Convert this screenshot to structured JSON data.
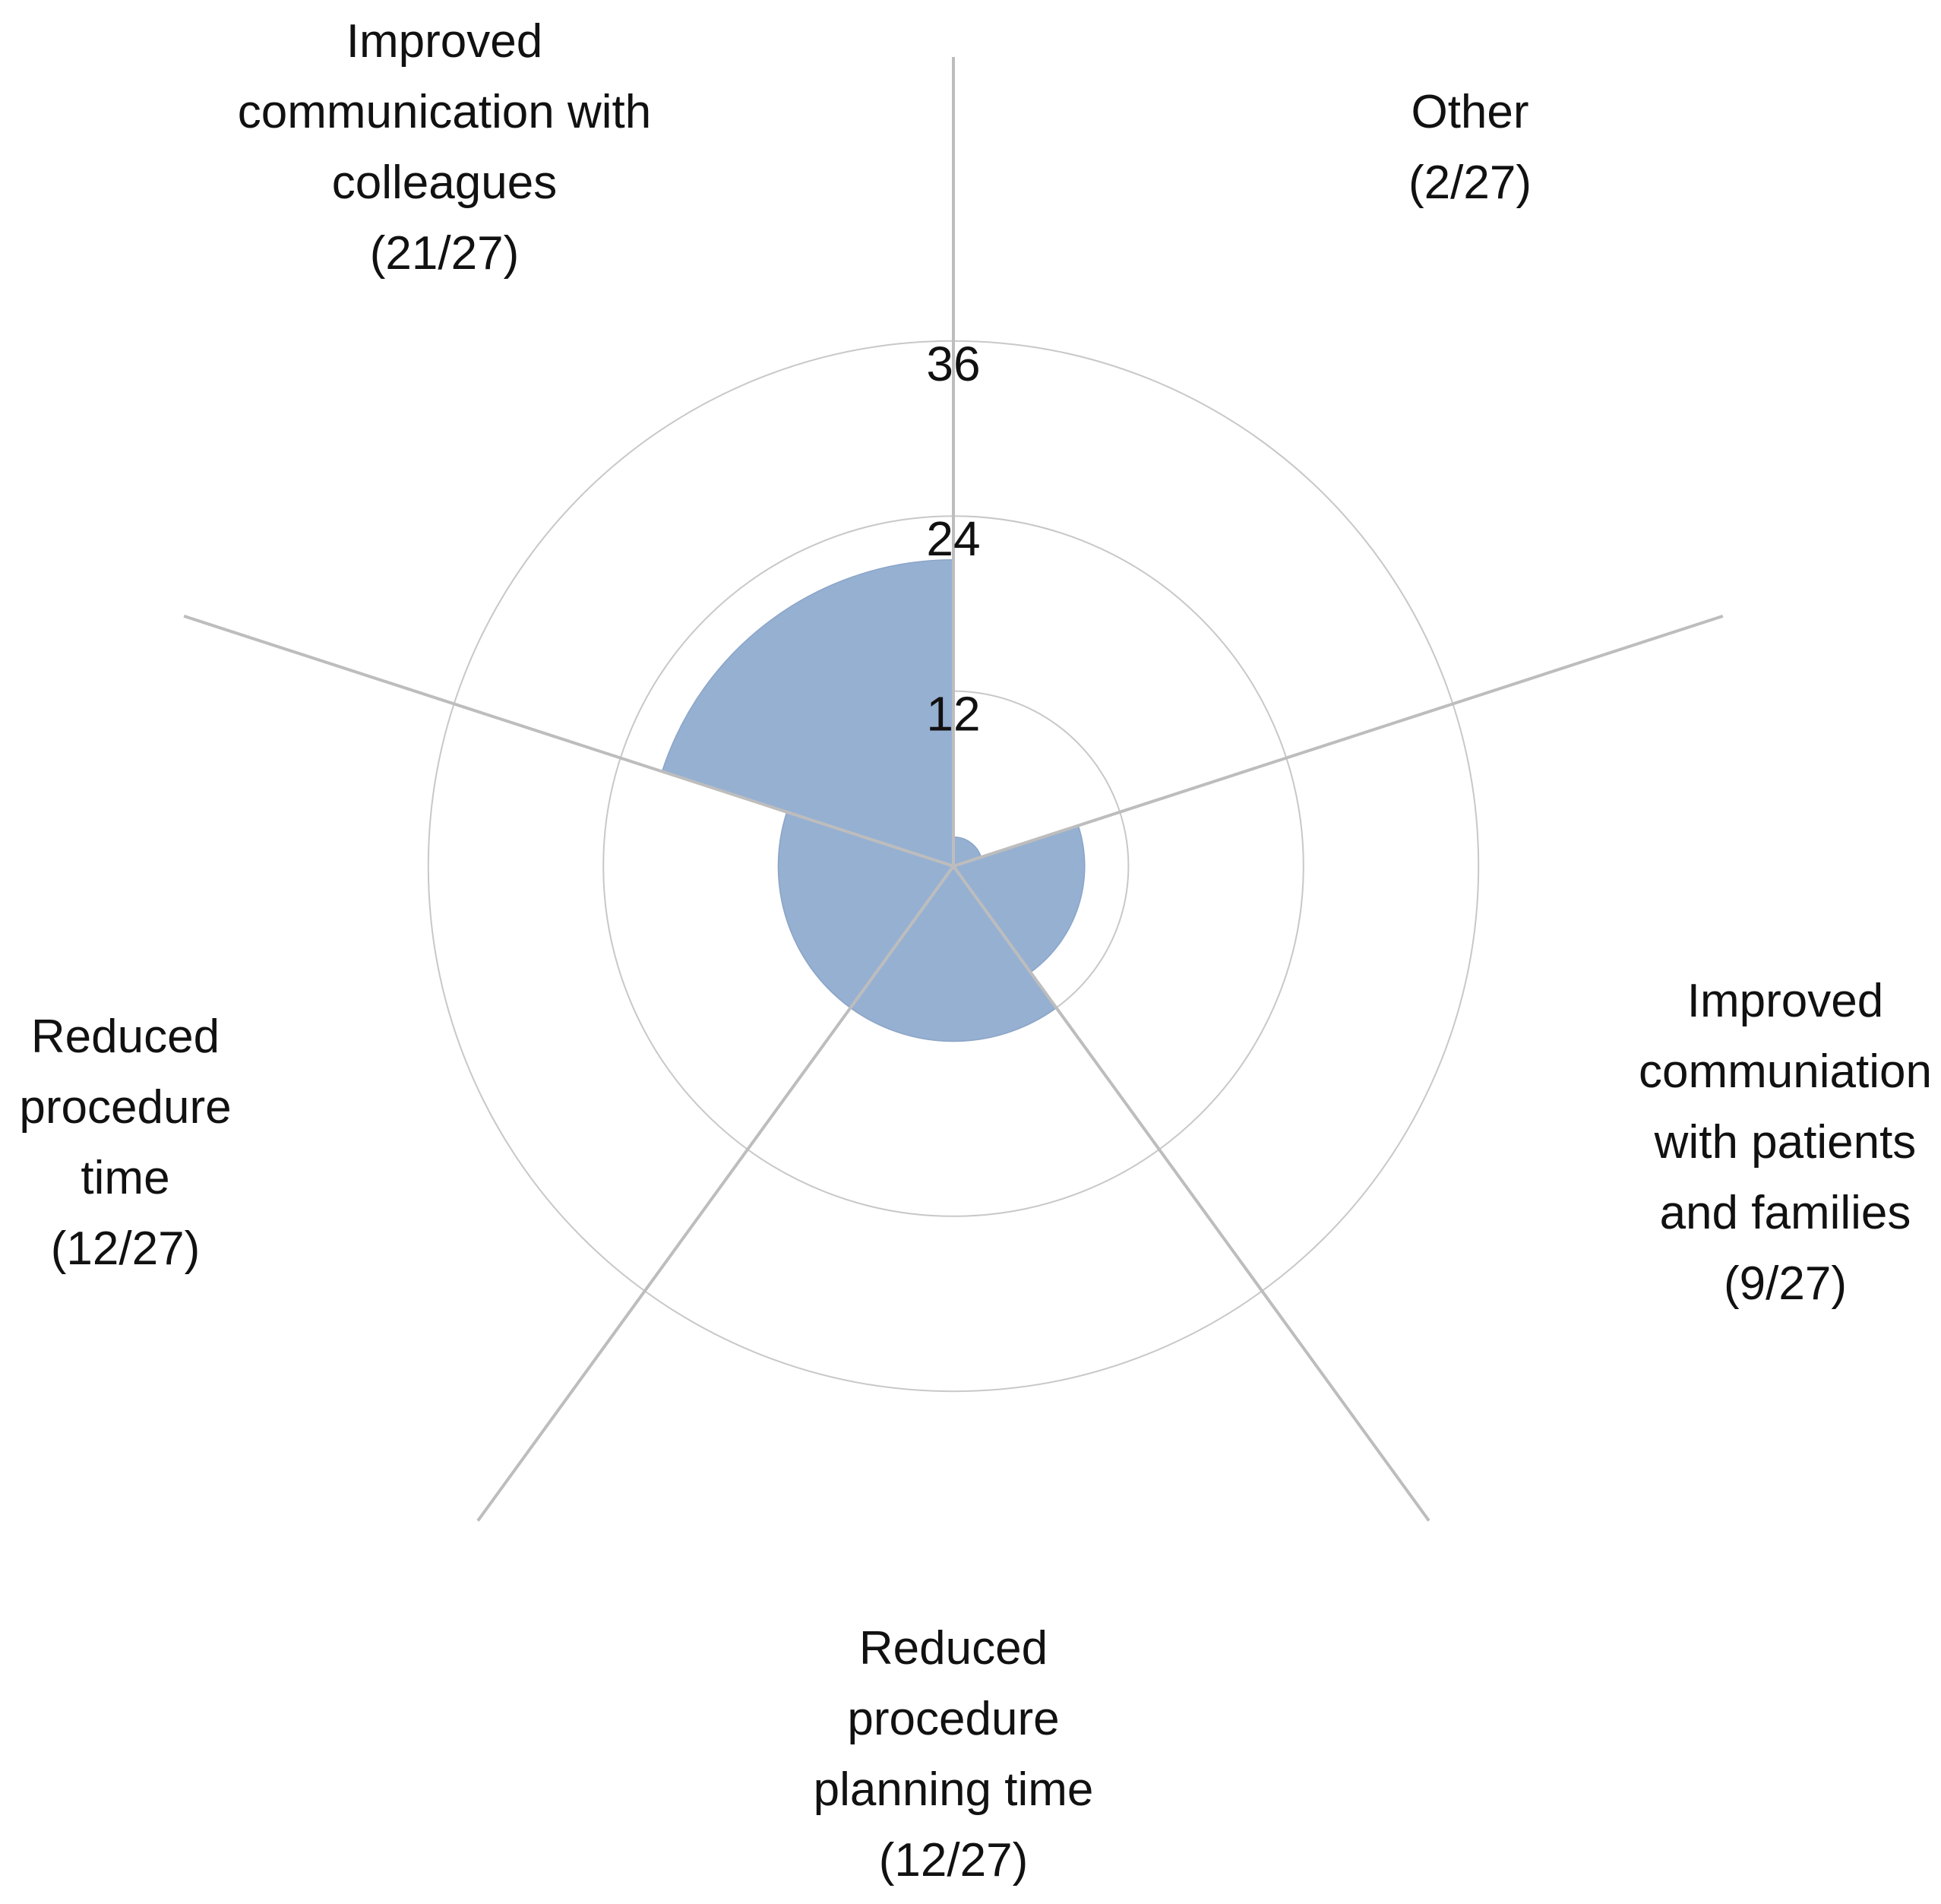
{
  "chart_data": {
    "type": "polar-area",
    "r_max": 36,
    "ring_values": [
      12,
      24,
      36
    ],
    "tick_labels": [
      "12",
      "24",
      "36"
    ],
    "grid": true,
    "colors": {
      "fill": "#96b0d2",
      "spoke": "#bdbdbd",
      "ring": "#c8c8c8"
    },
    "categories": [
      {
        "label_lines": [
          "Other",
          "(2/27)"
        ],
        "value": 2
      },
      {
        "label_lines": [
          "Improved",
          "communiation",
          "with patients",
          "and families",
          "(9/27)"
        ],
        "value": 9
      },
      {
        "label_lines": [
          "Reduced",
          "procedure",
          "planning time",
          "(12/27)"
        ],
        "value": 12
      },
      {
        "label_lines": [
          "Reduced",
          "procedure",
          "time",
          "(12/27)"
        ],
        "value": 12
      },
      {
        "label_lines": [
          "Improved",
          "communication with",
          "colleagues",
          "(21/27)"
        ],
        "value": 21
      }
    ]
  }
}
